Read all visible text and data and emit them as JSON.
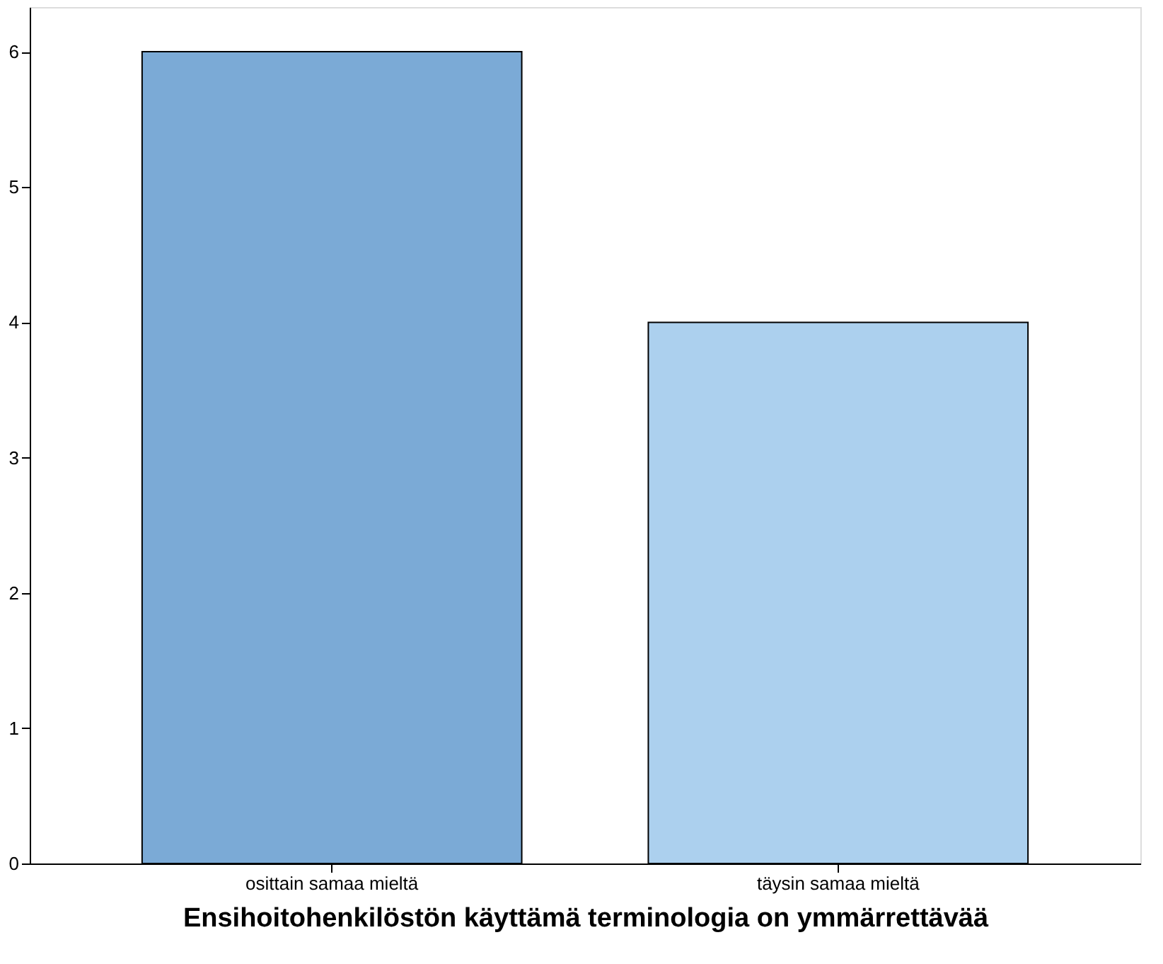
{
  "chart_data": {
    "type": "bar",
    "xlabel": "Ensihoitohenkilöstön käyttämä terminologia on ymmärrettävää",
    "categories": [
      "osittain samaa mieltä",
      "täysin samaa mieltä"
    ],
    "values": [
      6,
      4
    ],
    "colors": [
      "#7baad6",
      "#acd0ee"
    ],
    "ylim": [
      0,
      6.33
    ],
    "yticks": [
      0,
      1,
      2,
      3,
      4,
      5,
      6
    ]
  }
}
